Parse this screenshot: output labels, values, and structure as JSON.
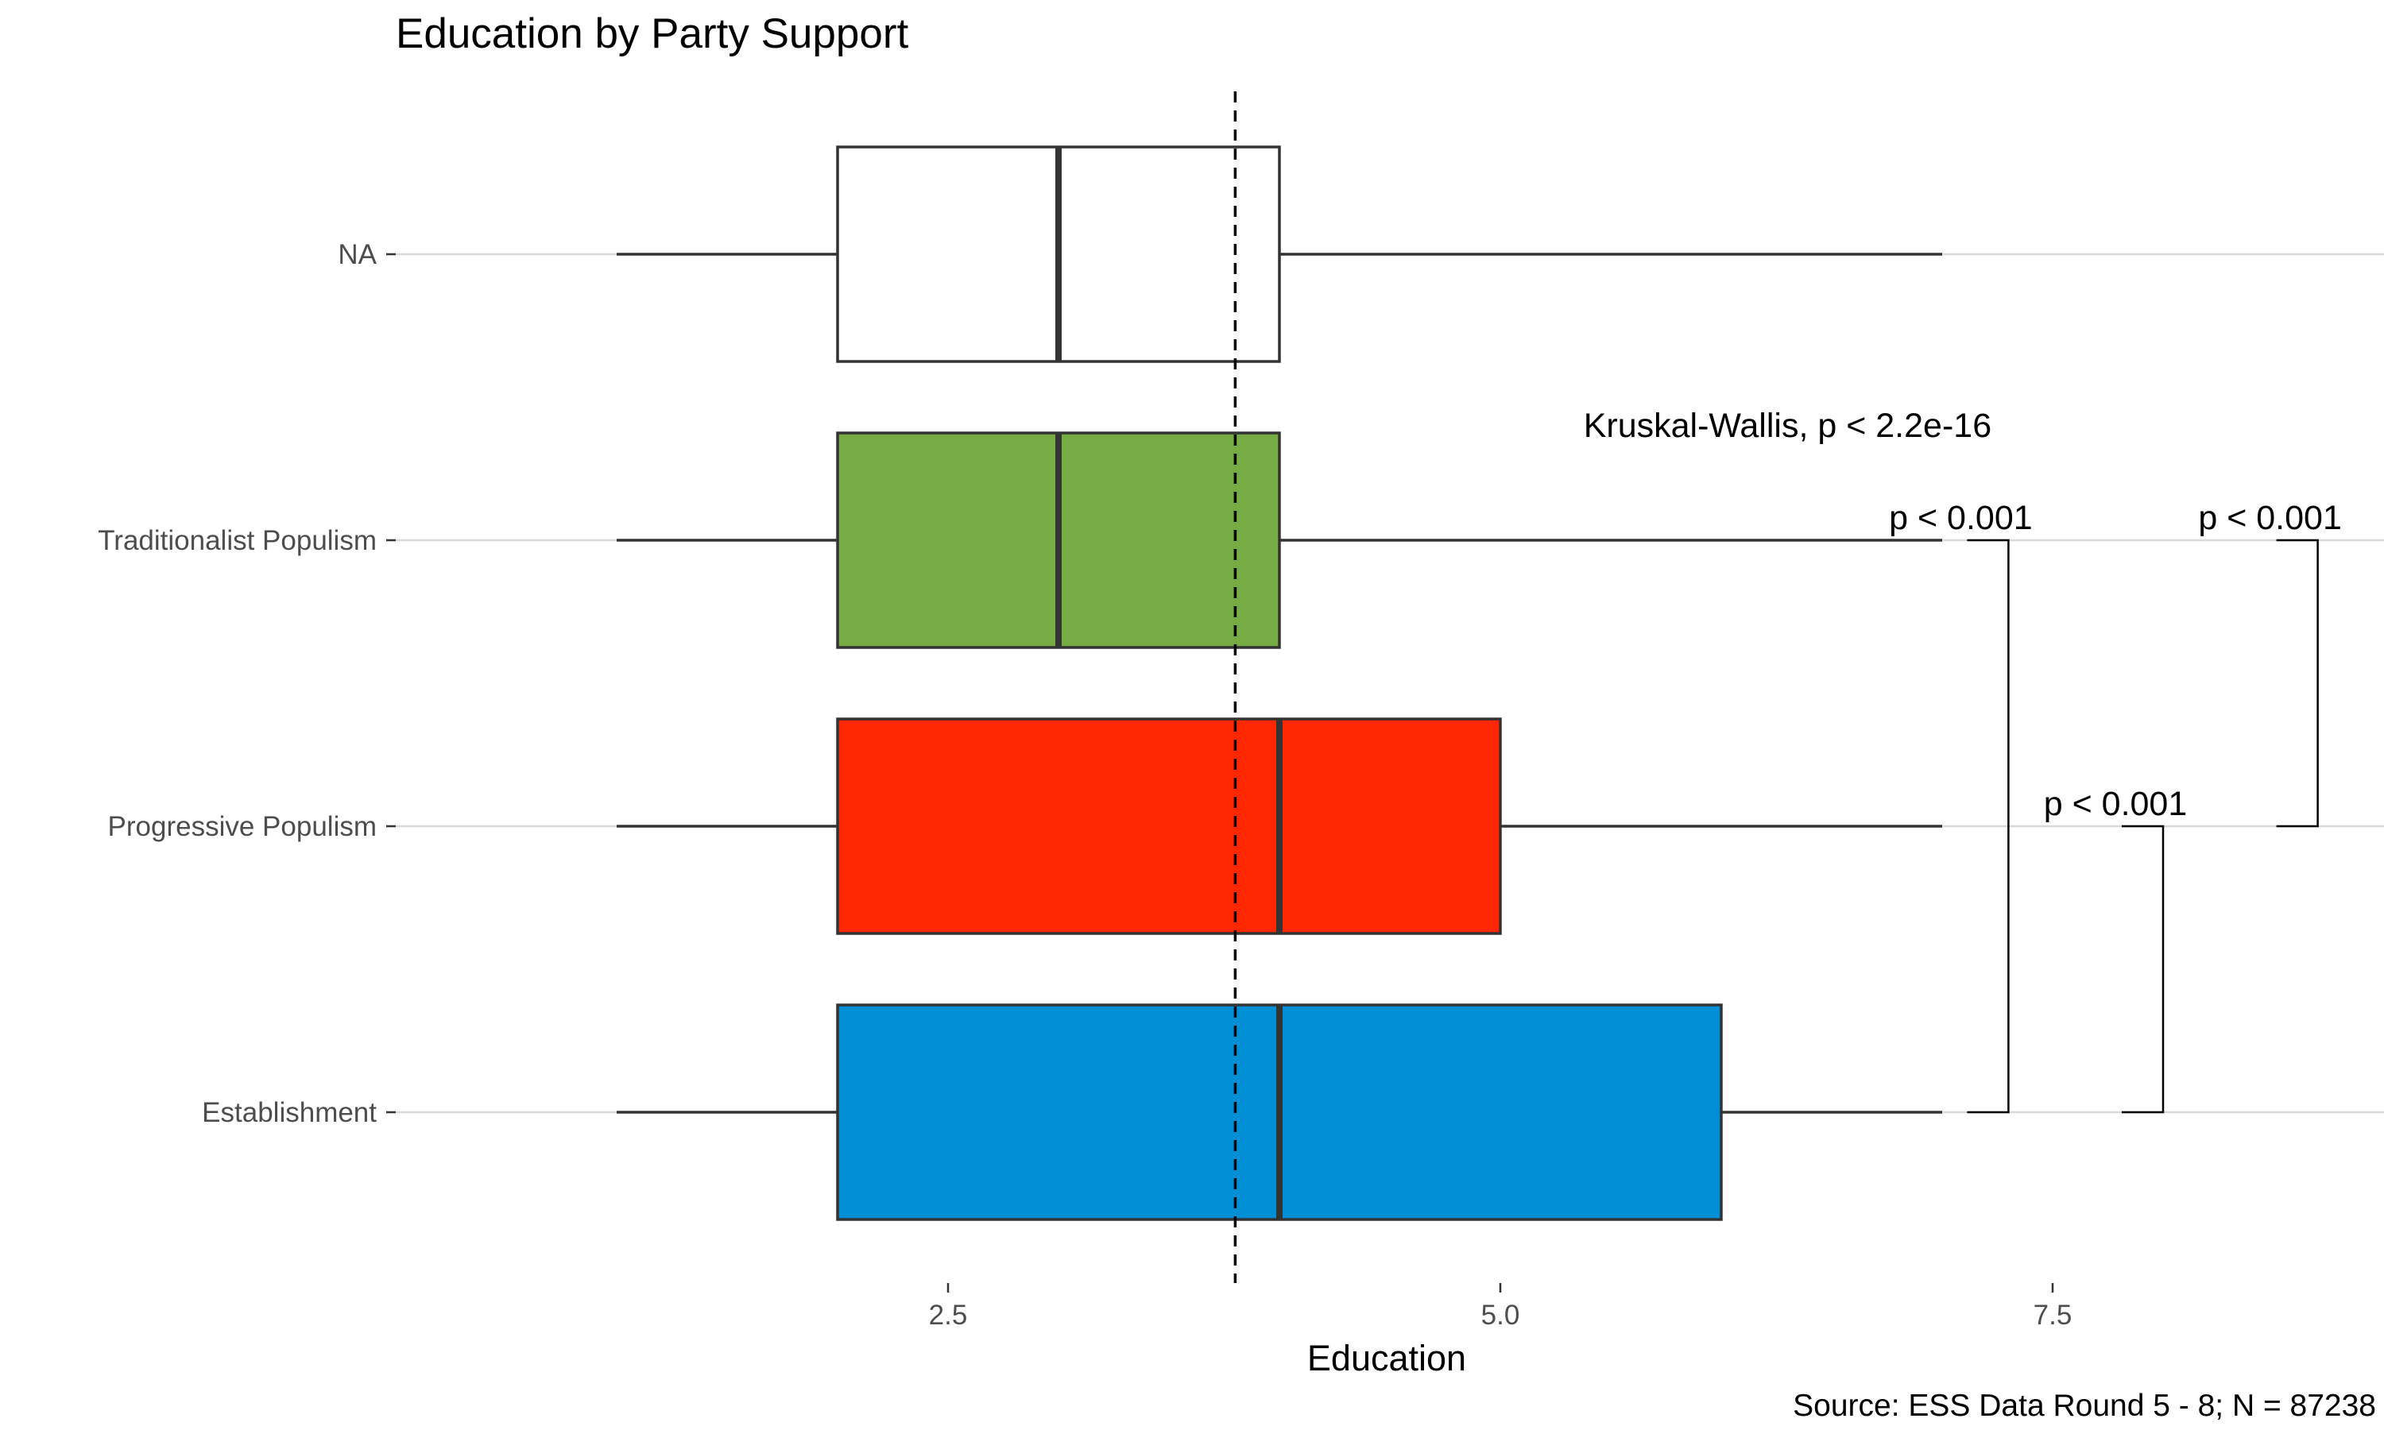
{
  "chart_data": {
    "type": "boxplot",
    "orientation": "horizontal",
    "title": "Education by Party Support",
    "xlabel": "Education",
    "ylabel": "",
    "xlim": [
      0.0,
      9.0
    ],
    "x_ticks": [
      2.5,
      5.0,
      7.5
    ],
    "x_tick_labels": [
      "2.5",
      "5.0",
      "7.5"
    ],
    "categories": [
      "Establishment",
      "Progressive Populism",
      "Traditionalist Populism",
      "NA"
    ],
    "boxes": [
      {
        "category": "Establishment",
        "whisker_low": 1,
        "q1": 2,
        "median": 4,
        "q3": 6,
        "whisker_high": 7,
        "fill": "#008fd5"
      },
      {
        "category": "Progressive Populism",
        "whisker_low": 1,
        "q1": 2,
        "median": 4,
        "q3": 5,
        "whisker_high": 7,
        "fill": "#ff2700"
      },
      {
        "category": "Traditionalist Populism",
        "whisker_low": 1,
        "q1": 2,
        "median": 3,
        "q3": 4,
        "whisker_high": 7,
        "fill": "#77ab43"
      },
      {
        "category": "NA",
        "whisker_low": 1,
        "q1": 2,
        "median": 3,
        "q3": 4,
        "whisker_high": 7,
        "fill": "#ffffff"
      }
    ],
    "reference_line": {
      "x": 3.8,
      "style": "dashed"
    },
    "overall_test": {
      "label": "Kruskal-Wallis, p < 2.2e-16",
      "x": 6.3,
      "near_category": "Traditionalist Populism"
    },
    "pairwise_comparisons": [
      {
        "group1": "Establishment",
        "group2": "Traditionalist Populism",
        "label": "p < 0.001",
        "x": 7.3
      },
      {
        "group1": "Establishment",
        "group2": "Progressive Populism",
        "label": "p < 0.001",
        "x": 8.0
      },
      {
        "group1": "Progressive Populism",
        "group2": "Traditionalist Populism",
        "label": "p < 0.001",
        "x": 8.7
      }
    ],
    "grid": {
      "major_y": true,
      "major_x": false
    },
    "caption": "Source: ESS Data Round 5 - 8; N = 87238",
    "colors": {
      "Establishment": "#008fd5",
      "Progressive Populism": "#ff2700",
      "Traditionalist Populism": "#77ab43",
      "NA": "#ffffff",
      "outline": "#333333",
      "gridline": "#d9d9d9"
    }
  }
}
